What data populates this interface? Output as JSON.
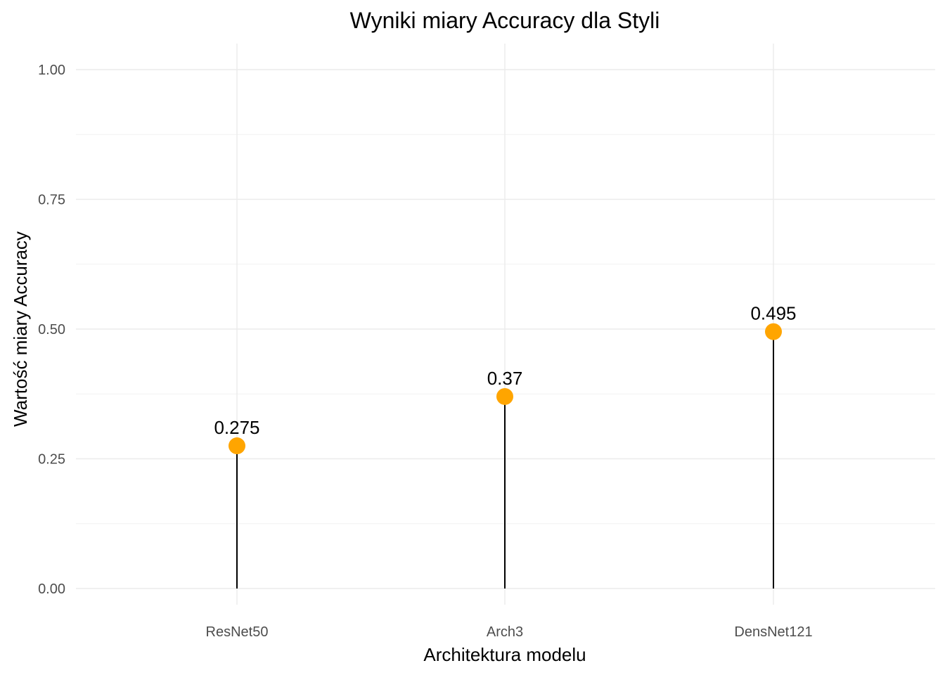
{
  "chart_data": {
    "type": "lollipop",
    "title": "Wyniki miary Accuracy dla Styli",
    "xlabel": "Architektura modelu",
    "ylabel": "Wartość miary Accuracy",
    "categories": [
      "ResNet50",
      "Arch3",
      "DensNet121"
    ],
    "values": [
      0.275,
      0.37,
      0.495
    ],
    "value_labels": [
      "0.275",
      "0.37",
      "0.495"
    ],
    "ylim": [
      0,
      1
    ],
    "y_ticks": [
      0,
      0.25,
      0.5,
      0.75,
      1
    ],
    "y_tick_labels": [
      "0.00",
      "0.25",
      "0.50",
      "0.75",
      "1.00"
    ],
    "grid": true,
    "legend": "none",
    "colors": {
      "point": "#FFA500",
      "stem": "#000000",
      "grid": "#EBEBEB",
      "background": "#FFFFFF"
    }
  }
}
